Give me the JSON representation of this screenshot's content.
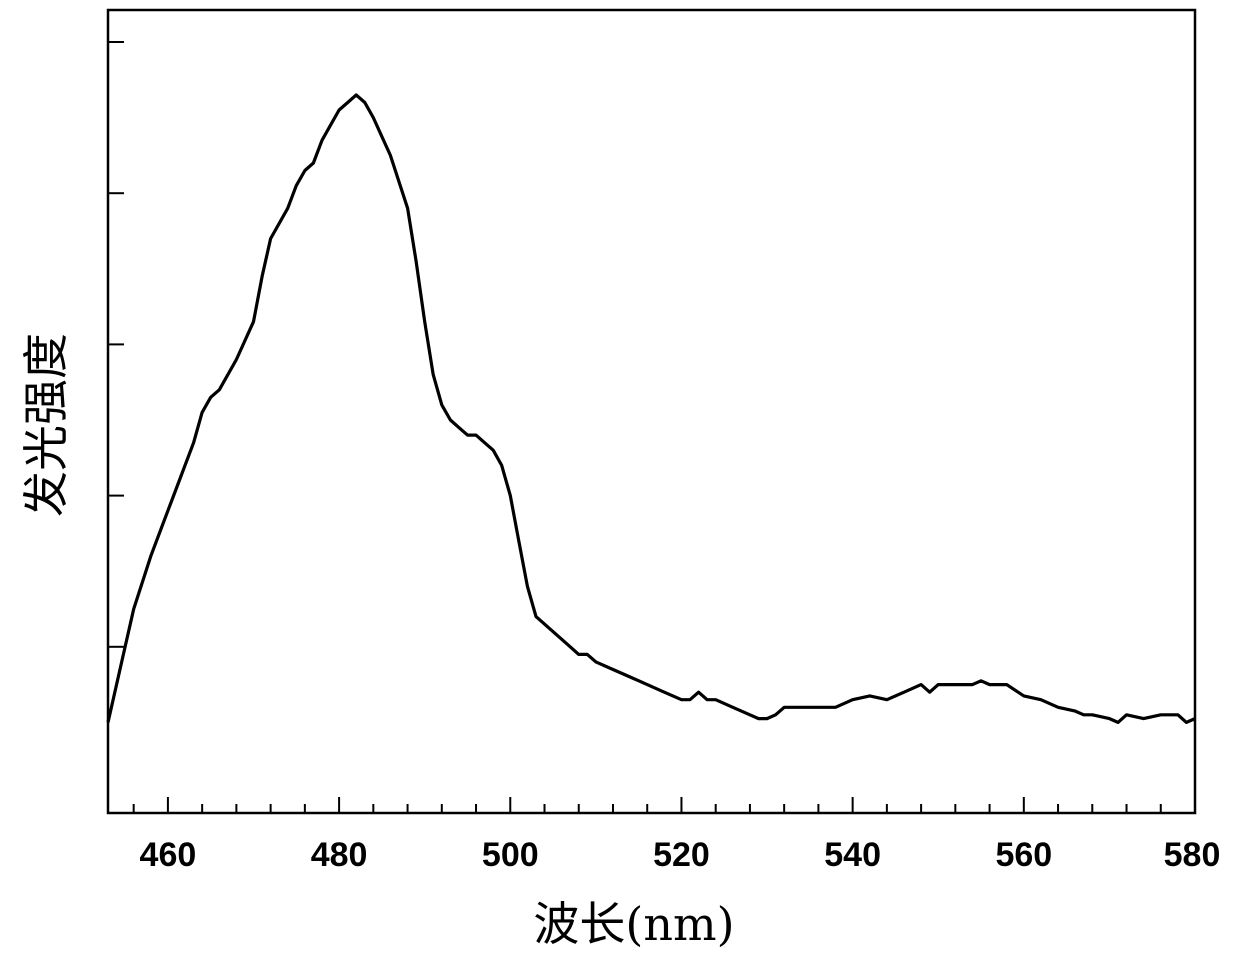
{
  "chart_data": {
    "type": "line",
    "title": "",
    "xlabel": "波长(nm)",
    "ylabel": "发光强度",
    "xlim": [
      453,
      580
    ],
    "ylim": [
      0,
      100
    ],
    "x_ticks": [
      460,
      480,
      500,
      520,
      540,
      560,
      580
    ],
    "x_tick_labels": [
      "460",
      "480",
      "500",
      "520",
      "540",
      "560",
      "580"
    ],
    "y_ticks_major": [
      20,
      40,
      60,
      80,
      100
    ],
    "y_tick_labels": [],
    "grid": false,
    "legend": "none",
    "line_color": "#000000",
    "series": [
      {
        "x": [
          453,
          455,
          456,
          458,
          460,
          461,
          462,
          463,
          464,
          465,
          466,
          468,
          470,
          471,
          472,
          474,
          475,
          476,
          477,
          478,
          479,
          480,
          481,
          482,
          483,
          484,
          486,
          488,
          489,
          490,
          491,
          492,
          493,
          494,
          495,
          496,
          497,
          498,
          499,
          500,
          501,
          502,
          503,
          504,
          505,
          506,
          507,
          508,
          509,
          510,
          512,
          514,
          516,
          518,
          520,
          521,
          522,
          523,
          524,
          526,
          528,
          529,
          530,
          531,
          532,
          534,
          536,
          538,
          540,
          542,
          544,
          546,
          548,
          549,
          550,
          552,
          554,
          555,
          556,
          558,
          560,
          562,
          564,
          566,
          567,
          568,
          570,
          571,
          572,
          574,
          576,
          578,
          579,
          580
        ],
        "y": [
          10,
          20,
          25,
          32,
          38,
          41,
          44,
          47,
          51,
          53,
          54,
          58,
          63,
          69,
          74,
          78,
          81,
          83,
          84,
          87,
          89,
          91,
          92,
          93,
          92,
          90,
          85,
          78,
          71,
          63,
          56,
          52,
          50,
          49,
          48,
          48,
          47,
          46,
          44,
          40,
          34,
          28,
          24,
          23,
          22,
          21,
          20,
          19,
          19,
          18,
          17,
          16,
          15,
          14,
          13,
          13,
          14,
          13,
          13,
          12,
          11,
          10.5,
          10.5,
          11,
          12,
          12,
          12,
          12,
          13,
          13.5,
          13,
          14,
          15,
          14,
          15,
          15,
          15,
          15.5,
          15,
          15,
          13.5,
          13,
          12,
          11.5,
          11,
          11,
          10.5,
          10,
          11,
          10.5,
          11,
          11,
          10,
          10.5
        ]
      }
    ]
  }
}
